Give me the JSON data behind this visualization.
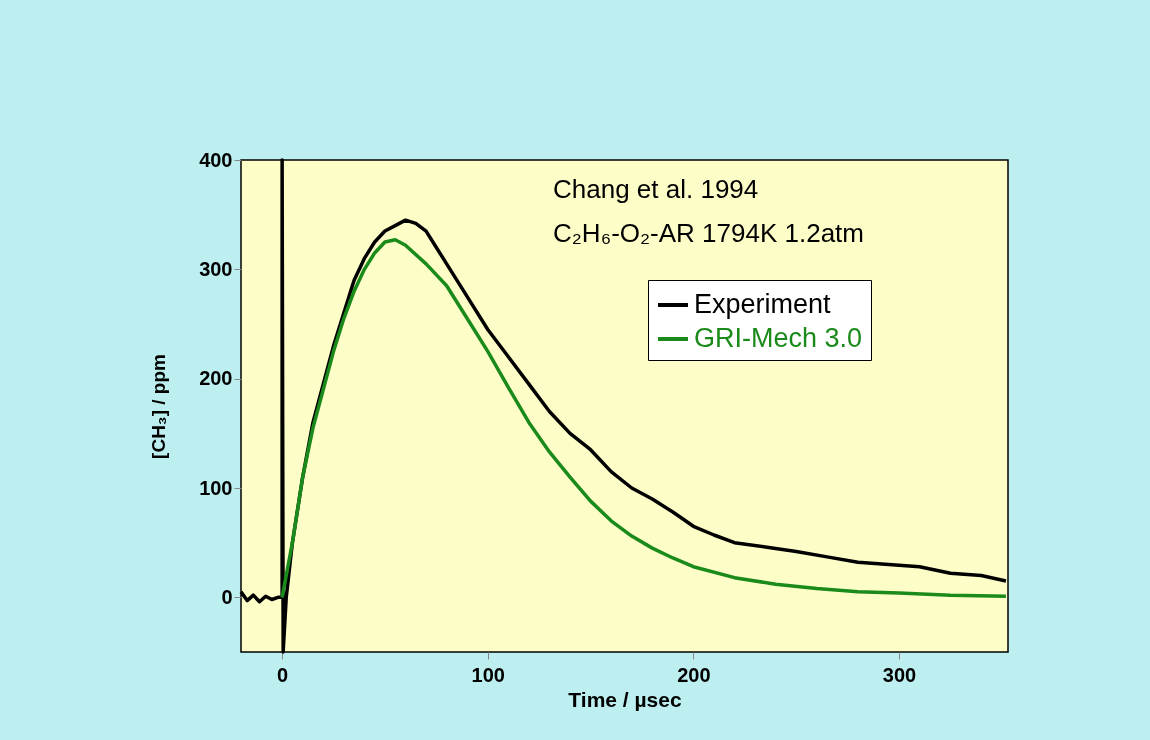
{
  "chart_data": {
    "type": "line",
    "xlabel": "Time / µsec",
    "ylabel": "[CH₃] / ppm",
    "annotations": [
      "Chang et al. 1994",
      "C₂H₆-O₂-AR 1794K 1.2atm"
    ],
    "xlim": [
      -20,
      353
    ],
    "ylim": [
      -50,
      400
    ],
    "xticks": [
      0,
      100,
      200,
      300
    ],
    "yticks": [
      0,
      100,
      200,
      300,
      400
    ],
    "grid": false,
    "legend": "top right",
    "line_style": "solid",
    "marker": "none",
    "series": [
      {
        "name": "Experiment",
        "color": "#000000",
        "x": [
          -20,
          -17,
          -14,
          -11,
          -8,
          -5,
          -2,
          0,
          0,
          0.5,
          2,
          5,
          10,
          15,
          20,
          25,
          30,
          35,
          40,
          45,
          50,
          55,
          60,
          65,
          70,
          75,
          80,
          90,
          100,
          110,
          120,
          130,
          140,
          150,
          160,
          170,
          180,
          190,
          200,
          210,
          220,
          235,
          250,
          265,
          280,
          295,
          310,
          325,
          340,
          352
        ],
        "values": [
          5,
          -3,
          2,
          -4,
          1,
          -2,
          0,
          0,
          400,
          -50,
          0,
          50,
          110,
          160,
          195,
          230,
          260,
          290,
          310,
          325,
          335,
          340,
          345,
          342,
          335,
          320,
          305,
          275,
          245,
          220,
          195,
          170,
          150,
          135,
          115,
          100,
          90,
          78,
          65,
          57,
          50,
          46,
          42,
          37,
          32,
          30,
          28,
          22,
          20,
          15
        ]
      },
      {
        "name": "GRI-Mech 3.0",
        "color": "#1a8a1a",
        "x": [
          0,
          5,
          10,
          15,
          20,
          25,
          30,
          35,
          40,
          45,
          50,
          55,
          60,
          70,
          80,
          90,
          100,
          110,
          120,
          130,
          140,
          150,
          160,
          170,
          180,
          190,
          200,
          220,
          240,
          260,
          280,
          300,
          325,
          352
        ],
        "values": [
          0,
          50,
          110,
          155,
          190,
          225,
          255,
          280,
          300,
          315,
          325,
          327,
          322,
          305,
          285,
          255,
          225,
          192,
          160,
          133,
          110,
          88,
          70,
          56,
          45,
          36,
          28,
          18,
          12,
          8,
          5,
          4,
          2,
          1
        ]
      }
    ]
  }
}
